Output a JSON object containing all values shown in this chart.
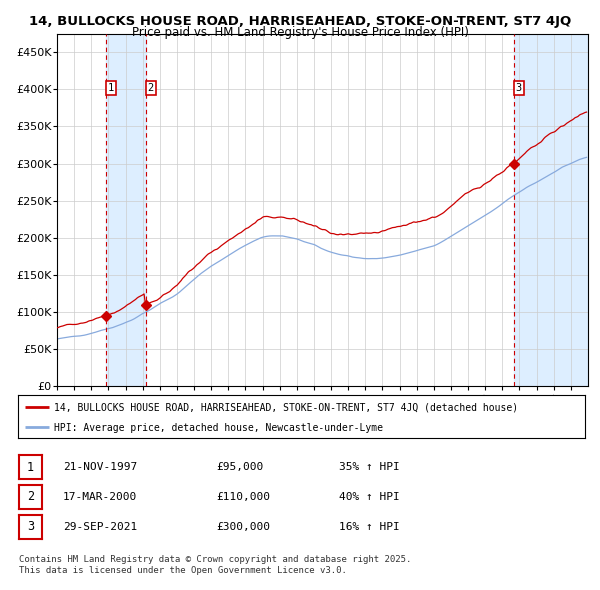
{
  "title_line1": "14, BULLOCKS HOUSE ROAD, HARRISEAHEAD, STOKE-ON-TRENT, ST7 4JQ",
  "title_line2": "Price paid vs. HM Land Registry's House Price Index (HPI)",
  "background_color": "#ffffff",
  "plot_bg_color": "#ffffff",
  "grid_color": "#cccccc",
  "red_line_color": "#cc0000",
  "blue_line_color": "#88aadd",
  "purchase_labels": [
    "1",
    "2",
    "3"
  ],
  "legend_line1": "14, BULLOCKS HOUSE ROAD, HARRISEAHEAD, STOKE-ON-TRENT, ST7 4JQ (detached house)",
  "legend_line2": "HPI: Average price, detached house, Newcastle-under-Lyme",
  "table_data": [
    [
      "1",
      "21-NOV-1997",
      "£95,000",
      "35% ↑ HPI"
    ],
    [
      "2",
      "17-MAR-2000",
      "£110,000",
      "40% ↑ HPI"
    ],
    [
      "3",
      "29-SEP-2021",
      "£300,000",
      "16% ↑ HPI"
    ]
  ],
  "footnote": "Contains HM Land Registry data © Crown copyright and database right 2025.\nThis data is licensed under the Open Government Licence v3.0.",
  "ylim": [
    0,
    475000
  ],
  "yticks": [
    0,
    50000,
    100000,
    150000,
    200000,
    250000,
    300000,
    350000,
    400000,
    450000
  ],
  "ytick_labels": [
    "£0",
    "£50K",
    "£100K",
    "£150K",
    "£200K",
    "£250K",
    "£300K",
    "£350K",
    "£400K",
    "£450K"
  ],
  "shade_color": "#ddeeff",
  "vline_color": "#cc0000",
  "marker_color": "#cc0000",
  "box_edge_color": "#cc0000",
  "box_face_color": "#ffffff",
  "hpi_ctrl_x": [
    0,
    6,
    12,
    18,
    24,
    30,
    36,
    42,
    48,
    54,
    60,
    66,
    72,
    78,
    84,
    90,
    96,
    102,
    108,
    114,
    120,
    126,
    132,
    138,
    144,
    150,
    156,
    162,
    168,
    174,
    180,
    186,
    192,
    198,
    204,
    210,
    216,
    222,
    228,
    234,
    240,
    246,
    252,
    258,
    264,
    270,
    276,
    282,
    288,
    294,
    300,
    306,
    312,
    318,
    324,
    330,
    336,
    342,
    348,
    354,
    360,
    366,
    371
  ],
  "hpi_ctrl_y": [
    64000,
    65500,
    67000,
    69000,
    72000,
    76000,
    79000,
    83000,
    88000,
    93000,
    100000,
    106000,
    113000,
    119000,
    126000,
    136000,
    146000,
    156000,
    164000,
    171000,
    178000,
    185000,
    192000,
    198000,
    203000,
    205000,
    205000,
    203000,
    200000,
    196000,
    192000,
    186000,
    182000,
    179000,
    177000,
    174000,
    172000,
    172000,
    173000,
    175000,
    177000,
    180000,
    183000,
    186000,
    190000,
    196000,
    203000,
    210000,
    217000,
    224000,
    231000,
    238000,
    246000,
    254000,
    261000,
    268000,
    274000,
    281000,
    288000,
    295000,
    300000,
    305000,
    308000
  ],
  "months_total": 372,
  "xstart": 1995.0,
  "p1": 95000,
  "p2": 110000,
  "p3": 300000,
  "m1": 34,
  "m2": 62,
  "m3": 320
}
